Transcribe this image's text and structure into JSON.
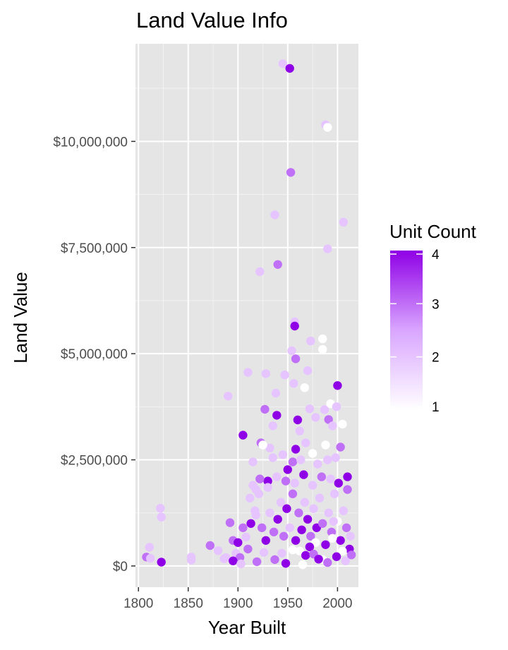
{
  "chart_data": {
    "type": "scatter",
    "title": "Land Value Info",
    "xlabel": "Year Built",
    "ylabel": "Land Value",
    "xlim": [
      1797,
      2021
    ],
    "ylim": [
      -500000,
      12300000
    ],
    "x_ticks": [
      1800,
      1850,
      1900,
      1950,
      2000
    ],
    "y_ticks": [
      0,
      2500000,
      5000000,
      7500000,
      10000000
    ],
    "y_tick_labels": [
      "$0",
      "$2,500,000",
      "$5,000,000",
      "$7,500,000",
      "$10,000,000"
    ],
    "grid": true,
    "legend": {
      "title": "Unit Count",
      "placement": "right",
      "breaks": [
        1,
        2,
        3,
        4
      ],
      "low_color": "#ffffff",
      "high_color": "#8f00e6"
    },
    "points": [
      [
        1808,
        210000,
        3
      ],
      [
        1811,
        440000,
        2
      ],
      [
        1812,
        180000,
        2
      ],
      [
        1822,
        1360000,
        2
      ],
      [
        1823,
        1150000,
        2
      ],
      [
        1823,
        90000,
        4
      ],
      [
        1853,
        210000,
        2
      ],
      [
        1853,
        140000,
        2
      ],
      [
        1872,
        480000,
        3
      ],
      [
        1880,
        360000,
        2
      ],
      [
        1886,
        170000,
        2
      ],
      [
        1890,
        4000000,
        2
      ],
      [
        1892,
        1020000,
        3
      ],
      [
        1905,
        3080000,
        4
      ],
      [
        1910,
        4560000,
        2
      ],
      [
        1915,
        2450000,
        2
      ],
      [
        1918,
        1800000,
        2
      ],
      [
        1922,
        6930000,
        2
      ],
      [
        1923,
        2900000,
        3
      ],
      [
        1927,
        3690000,
        3
      ],
      [
        1928,
        4530000,
        2
      ],
      [
        1930,
        2000000,
        4
      ],
      [
        1935,
        3300000,
        2
      ],
      [
        1937,
        8270000,
        2
      ],
      [
        1938,
        4070000,
        2
      ],
      [
        1939,
        3550000,
        4
      ],
      [
        1940,
        7100000,
        3
      ],
      [
        1945,
        11830000,
        2
      ],
      [
        1947,
        4500000,
        2
      ],
      [
        1950,
        2270000,
        4
      ],
      [
        1952,
        11720000,
        4
      ],
      [
        1953,
        9270000,
        3
      ],
      [
        1954,
        5070000,
        2
      ],
      [
        1956,
        4300000,
        2
      ],
      [
        1957,
        5750000,
        2
      ],
      [
        1957,
        5650000,
        4
      ],
      [
        1958,
        4880000,
        3
      ],
      [
        1958,
        2750000,
        4
      ],
      [
        1960,
        3440000,
        4
      ],
      [
        1962,
        3180000,
        2
      ],
      [
        1967,
        4200000,
        1
      ],
      [
        1970,
        4600000,
        2
      ],
      [
        1972,
        3700000,
        2
      ],
      [
        1973,
        5300000,
        2
      ],
      [
        1978,
        3500000,
        2
      ],
      [
        1985,
        5350000,
        1
      ],
      [
        1985,
        5100000,
        1
      ],
      [
        1987,
        3680000,
        2
      ],
      [
        1988,
        10390000,
        2
      ],
      [
        1990,
        10330000,
        1
      ],
      [
        1990,
        7470000,
        2
      ],
      [
        1991,
        3450000,
        3
      ],
      [
        1993,
        3820000,
        1
      ],
      [
        1995,
        3300000,
        2
      ],
      [
        1999,
        3750000,
        2
      ],
      [
        2000,
        4250000,
        4
      ],
      [
        2003,
        2800000,
        3
      ],
      [
        2006,
        8100000,
        2
      ],
      [
        2005,
        3340000,
        1
      ],
      [
        2010,
        2100000,
        4
      ],
      [
        1988,
        2850000,
        1
      ],
      [
        1975,
        2650000,
        1
      ],
      [
        1968,
        2900000,
        2
      ],
      [
        1945,
        2620000,
        2
      ],
      [
        1955,
        2450000,
        3
      ],
      [
        1932,
        2780000,
        2
      ],
      [
        1925,
        2850000,
        1
      ],
      [
        1990,
        2500000,
        2
      ],
      [
        1998,
        2550000,
        2
      ],
      [
        1935,
        2550000,
        2
      ],
      [
        1963,
        2500000,
        2
      ],
      [
        1980,
        2400000,
        2
      ],
      [
        1912,
        1600000,
        2
      ],
      [
        1918,
        1200000,
        2
      ],
      [
        1905,
        900000,
        3
      ],
      [
        1895,
        600000,
        3
      ],
      [
        1900,
        550000,
        4
      ],
      [
        1888,
        200000,
        2
      ],
      [
        1898,
        300000,
        2
      ],
      [
        1902,
        200000,
        3
      ],
      [
        1910,
        400000,
        3
      ],
      [
        1895,
        120000,
        4
      ],
      [
        1903,
        50000,
        2
      ],
      [
        1908,
        680000,
        2
      ],
      [
        1913,
        1000000,
        4
      ],
      [
        1917,
        1300000,
        2
      ],
      [
        1921,
        1700000,
        2
      ],
      [
        1924,
        900000,
        3
      ],
      [
        1928,
        600000,
        4
      ],
      [
        1932,
        1250000,
        2
      ],
      [
        1936,
        800000,
        3
      ],
      [
        1940,
        1100000,
        4
      ],
      [
        1943,
        1500000,
        2
      ],
      [
        1946,
        700000,
        3
      ],
      [
        1949,
        1350000,
        4
      ],
      [
        1952,
        900000,
        2
      ],
      [
        1955,
        1700000,
        3
      ],
      [
        1958,
        600000,
        4
      ],
      [
        1961,
        1250000,
        3
      ],
      [
        1964,
        850000,
        4
      ],
      [
        1967,
        1500000,
        2
      ],
      [
        1970,
        1100000,
        4
      ],
      [
        1973,
        700000,
        3
      ],
      [
        1976,
        1350000,
        2
      ],
      [
        1979,
        900000,
        4
      ],
      [
        1982,
        1600000,
        2
      ],
      [
        1985,
        1000000,
        3
      ],
      [
        1988,
        500000,
        4
      ],
      [
        1991,
        1250000,
        2
      ],
      [
        1994,
        800000,
        3
      ],
      [
        1997,
        1700000,
        2
      ],
      [
        2000,
        1050000,
        1
      ],
      [
        2003,
        600000,
        4
      ],
      [
        2006,
        1300000,
        2
      ],
      [
        2009,
        900000,
        3
      ],
      [
        2012,
        400000,
        4
      ],
      [
        2013,
        700000,
        2
      ],
      [
        2010,
        1800000,
        3
      ],
      [
        2001,
        1950000,
        4
      ],
      [
        1993,
        2050000,
        2
      ],
      [
        1984,
        2100000,
        3
      ],
      [
        1975,
        1900000,
        2
      ],
      [
        1966,
        2150000,
        4
      ],
      [
        1957,
        1950000,
        2
      ],
      [
        1948,
        2000000,
        3
      ],
      [
        1939,
        2100000,
        2
      ],
      [
        1930,
        1850000,
        2
      ],
      [
        1922,
        2050000,
        3
      ],
      [
        1915,
        1900000,
        2
      ],
      [
        1962,
        350000,
        1
      ],
      [
        1968,
        250000,
        4
      ],
      [
        1955,
        380000,
        1
      ],
      [
        1965,
        30000,
        1
      ],
      [
        1978,
        550000,
        1
      ],
      [
        1985,
        150000,
        1
      ],
      [
        1995,
        650000,
        1
      ],
      [
        2005,
        350000,
        1
      ],
      [
        1996,
        1050000,
        2
      ],
      [
        1972,
        450000,
        4
      ],
      [
        1976,
        280000,
        3
      ],
      [
        1981,
        160000,
        4
      ],
      [
        1990,
        80000,
        3
      ],
      [
        1999,
        220000,
        4
      ],
      [
        2008,
        120000,
        2
      ],
      [
        2014,
        260000,
        3
      ],
      [
        1944,
        300000,
        2
      ],
      [
        1937,
        150000,
        3
      ],
      [
        1926,
        320000,
        2
      ],
      [
        1919,
        100000,
        3
      ],
      [
        1948,
        60000,
        4
      ]
    ]
  }
}
